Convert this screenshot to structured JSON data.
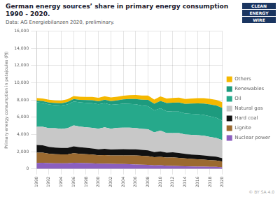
{
  "chart_data": {
    "type": "area",
    "title": "German energy sources’ share in primary energy consumption 1990 - 2020.",
    "subtitle": "Data: AG Energiebilanzen 2020, preliminary.",
    "ylabel": "Primary energy consumption in petajoules (PJ)",
    "annotations": [
      "CLEAN",
      "ENERGY",
      "WIRE",
      "© BY SA 4.0"
    ],
    "x": [
      1990,
      1991,
      1992,
      1993,
      1994,
      1995,
      1996,
      1997,
      1998,
      1999,
      2000,
      2001,
      2002,
      2003,
      2004,
      2005,
      2006,
      2007,
      2008,
      2009,
      2010,
      2011,
      2012,
      2013,
      2014,
      2015,
      2016,
      2017,
      2018,
      2019,
      2020
    ],
    "xlim": [
      1990,
      2020
    ],
    "xticks": [
      1990,
      1992,
      1994,
      1996,
      1998,
      2000,
      2002,
      2004,
      2006,
      2008,
      2010,
      2012,
      2014,
      2016,
      2018,
      2020
    ],
    "ylim": [
      0,
      16000
    ],
    "yticks": [
      0,
      {
        "value": 2000,
        "label": "2,000"
      },
      {
        "value": 4000,
        "label": "4,000"
      },
      {
        "value": 6000,
        "label": "6,000"
      },
      {
        "value": 8000,
        "label": "8,000"
      },
      {
        "value": 10000,
        "label": "10,000"
      },
      {
        "value": 12000,
        "label": "12,000"
      },
      {
        "value": 14000,
        "label": "14,000"
      },
      {
        "value": 16000,
        "label": "16,000"
      }
    ],
    "stacked": true,
    "grid": true,
    "legend": "right",
    "series": [
      {
        "name": "Nuclear power",
        "color": "#8b5fbf",
        "values": [
          680,
          700,
          660,
          650,
          640,
          640,
          700,
          680,
          660,
          640,
          610,
          600,
          580,
          570,
          560,
          540,
          510,
          490,
          460,
          410,
          420,
          370,
          350,
          320,
          300,
          290,
          270,
          260,
          250,
          240,
          180
        ]
      },
      {
        "name": "Lignite",
        "color": "#9b6a30",
        "values": [
          1200,
          1180,
          1100,
          1060,
          1050,
          1050,
          1120,
          1070,
          1050,
          1020,
          980,
          1010,
          980,
          1000,
          1010,
          1030,
          1050,
          1030,
          1010,
          940,
          980,
          950,
          980,
          950,
          910,
          860,
          840,
          810,
          760,
          730,
          670
        ]
      },
      {
        "name": "Hard coal",
        "color": "#111111",
        "values": [
          900,
          850,
          790,
          760,
          750,
          740,
          790,
          760,
          740,
          710,
          690,
          720,
          690,
          710,
          720,
          700,
          710,
          700,
          670,
          590,
          620,
          570,
          590,
          570,
          540,
          520,
          520,
          500,
          470,
          440,
          390
        ]
      },
      {
        "name": "Natural gas",
        "color": "#c8c8c8",
        "values": [
          2100,
          2150,
          2180,
          2250,
          2200,
          2300,
          2450,
          2400,
          2380,
          2400,
          2380,
          2500,
          2420,
          2480,
          2500,
          2520,
          2480,
          2420,
          2460,
          2300,
          2420,
          2260,
          2240,
          2320,
          2240,
          2280,
          2280,
          2280,
          2240,
          2180,
          2100
        ]
      },
      {
        "name": "Oil",
        "color": "#26a98b",
        "values": [
          2850,
          2780,
          2750,
          2680,
          2720,
          2750,
          2780,
          2810,
          2840,
          2860,
          2840,
          2800,
          2780,
          2750,
          2780,
          2760,
          2750,
          2720,
          2680,
          2550,
          2600,
          2540,
          2500,
          2490,
          2440,
          2440,
          2430,
          2420,
          2380,
          2360,
          2240
        ]
      },
      {
        "name": "Renewables",
        "color": "#1d9b7e",
        "values": [
          200,
          210,
          230,
          240,
          250,
          280,
          280,
          300,
          320,
          340,
          360,
          400,
          430,
          450,
          500,
          560,
          620,
          680,
          740,
          780,
          860,
          960,
          1020,
          1060,
          1120,
          1200,
          1260,
          1320,
          1380,
          1420,
          1500
        ]
      },
      {
        "name": "Others",
        "color": "#f5b800",
        "values": [
          300,
          310,
          320,
          320,
          330,
          330,
          340,
          350,
          360,
          380,
          390,
          400,
          410,
          420,
          430,
          450,
          470,
          490,
          510,
          480,
          510,
          530,
          550,
          570,
          570,
          590,
          610,
          630,
          650,
          650,
          670
        ]
      }
    ]
  }
}
